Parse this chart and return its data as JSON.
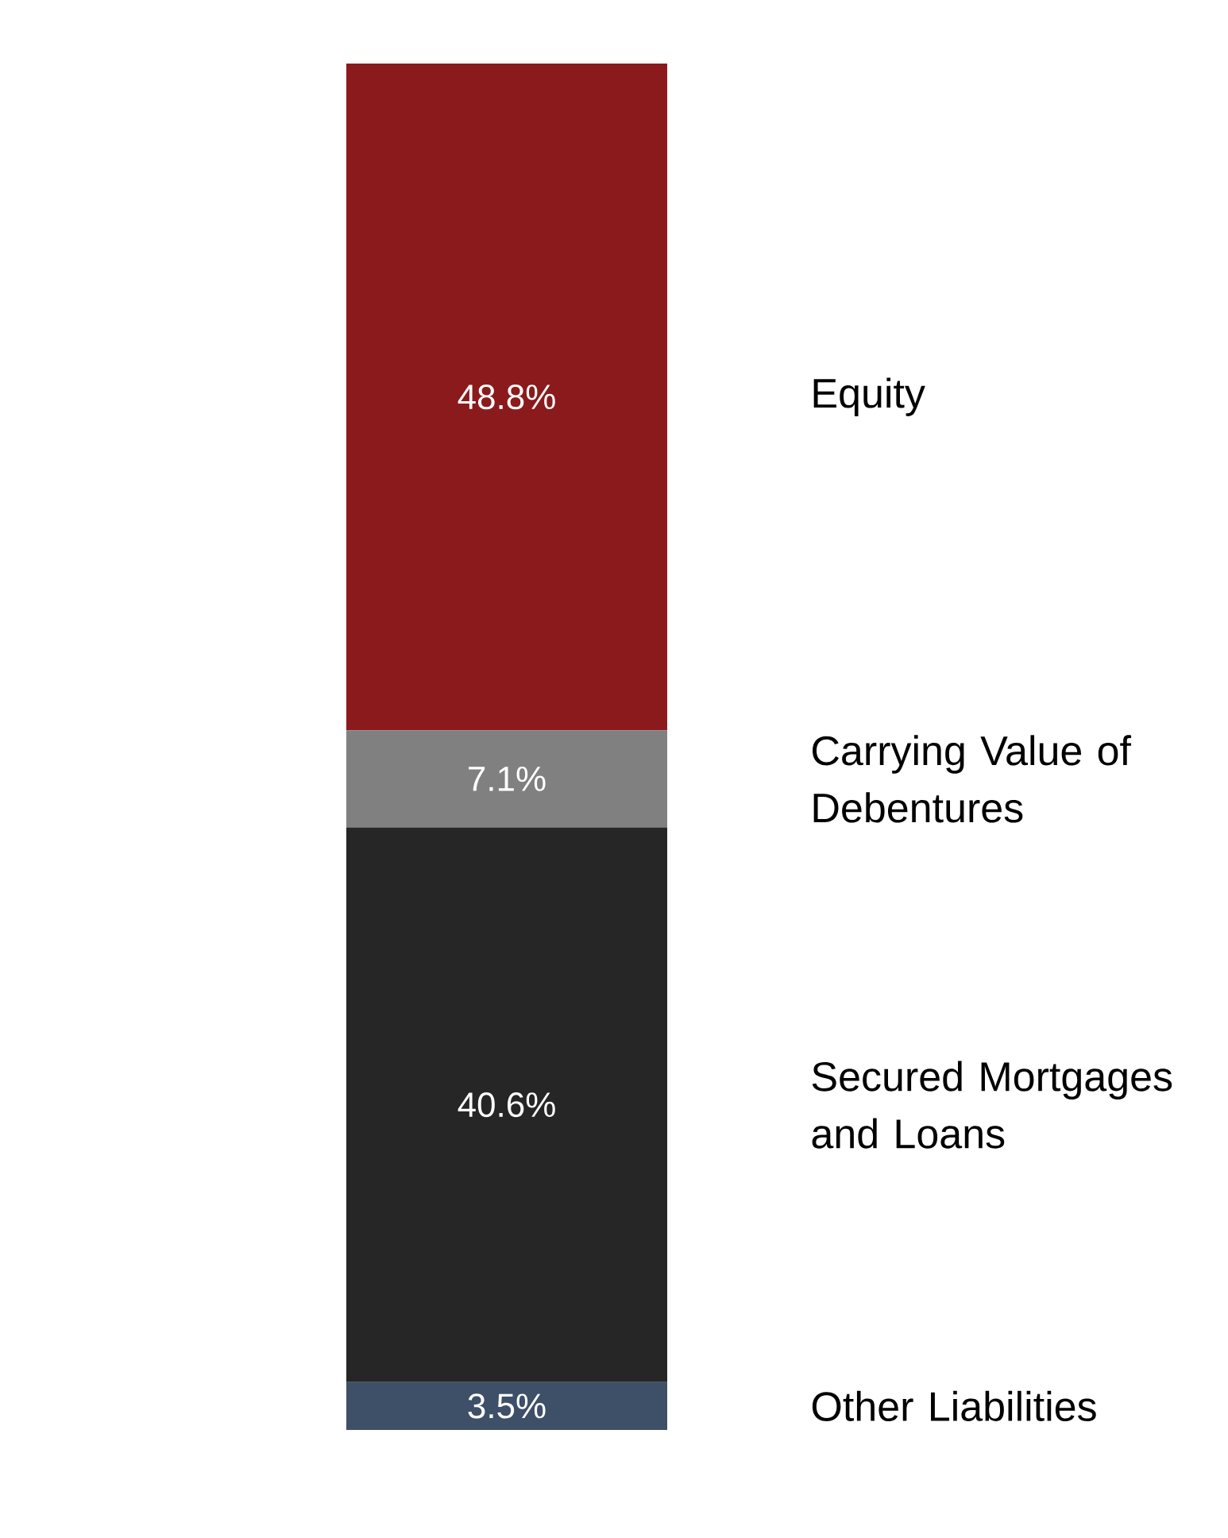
{
  "chart_data": {
    "type": "bar",
    "stacked": true,
    "categories": [
      null
    ],
    "series": [
      {
        "name": "Other Liabilities",
        "color": "#3e5068",
        "values": [
          3.5
        ],
        "value_labels": [
          "3.5%"
        ]
      },
      {
        "name": "Secured Mortgages and Loans",
        "color": "#262626",
        "values": [
          40.6
        ],
        "value_labels": [
          "40.6%"
        ]
      },
      {
        "name": "Carrying Value of Debentures",
        "color": "#808080",
        "values": [
          7.1
        ],
        "value_labels": [
          "7.1%"
        ]
      },
      {
        "name": "Equity",
        "color": "#8b1a1c",
        "values": [
          48.8
        ],
        "value_labels": [
          "48.8%"
        ]
      }
    ]
  }
}
